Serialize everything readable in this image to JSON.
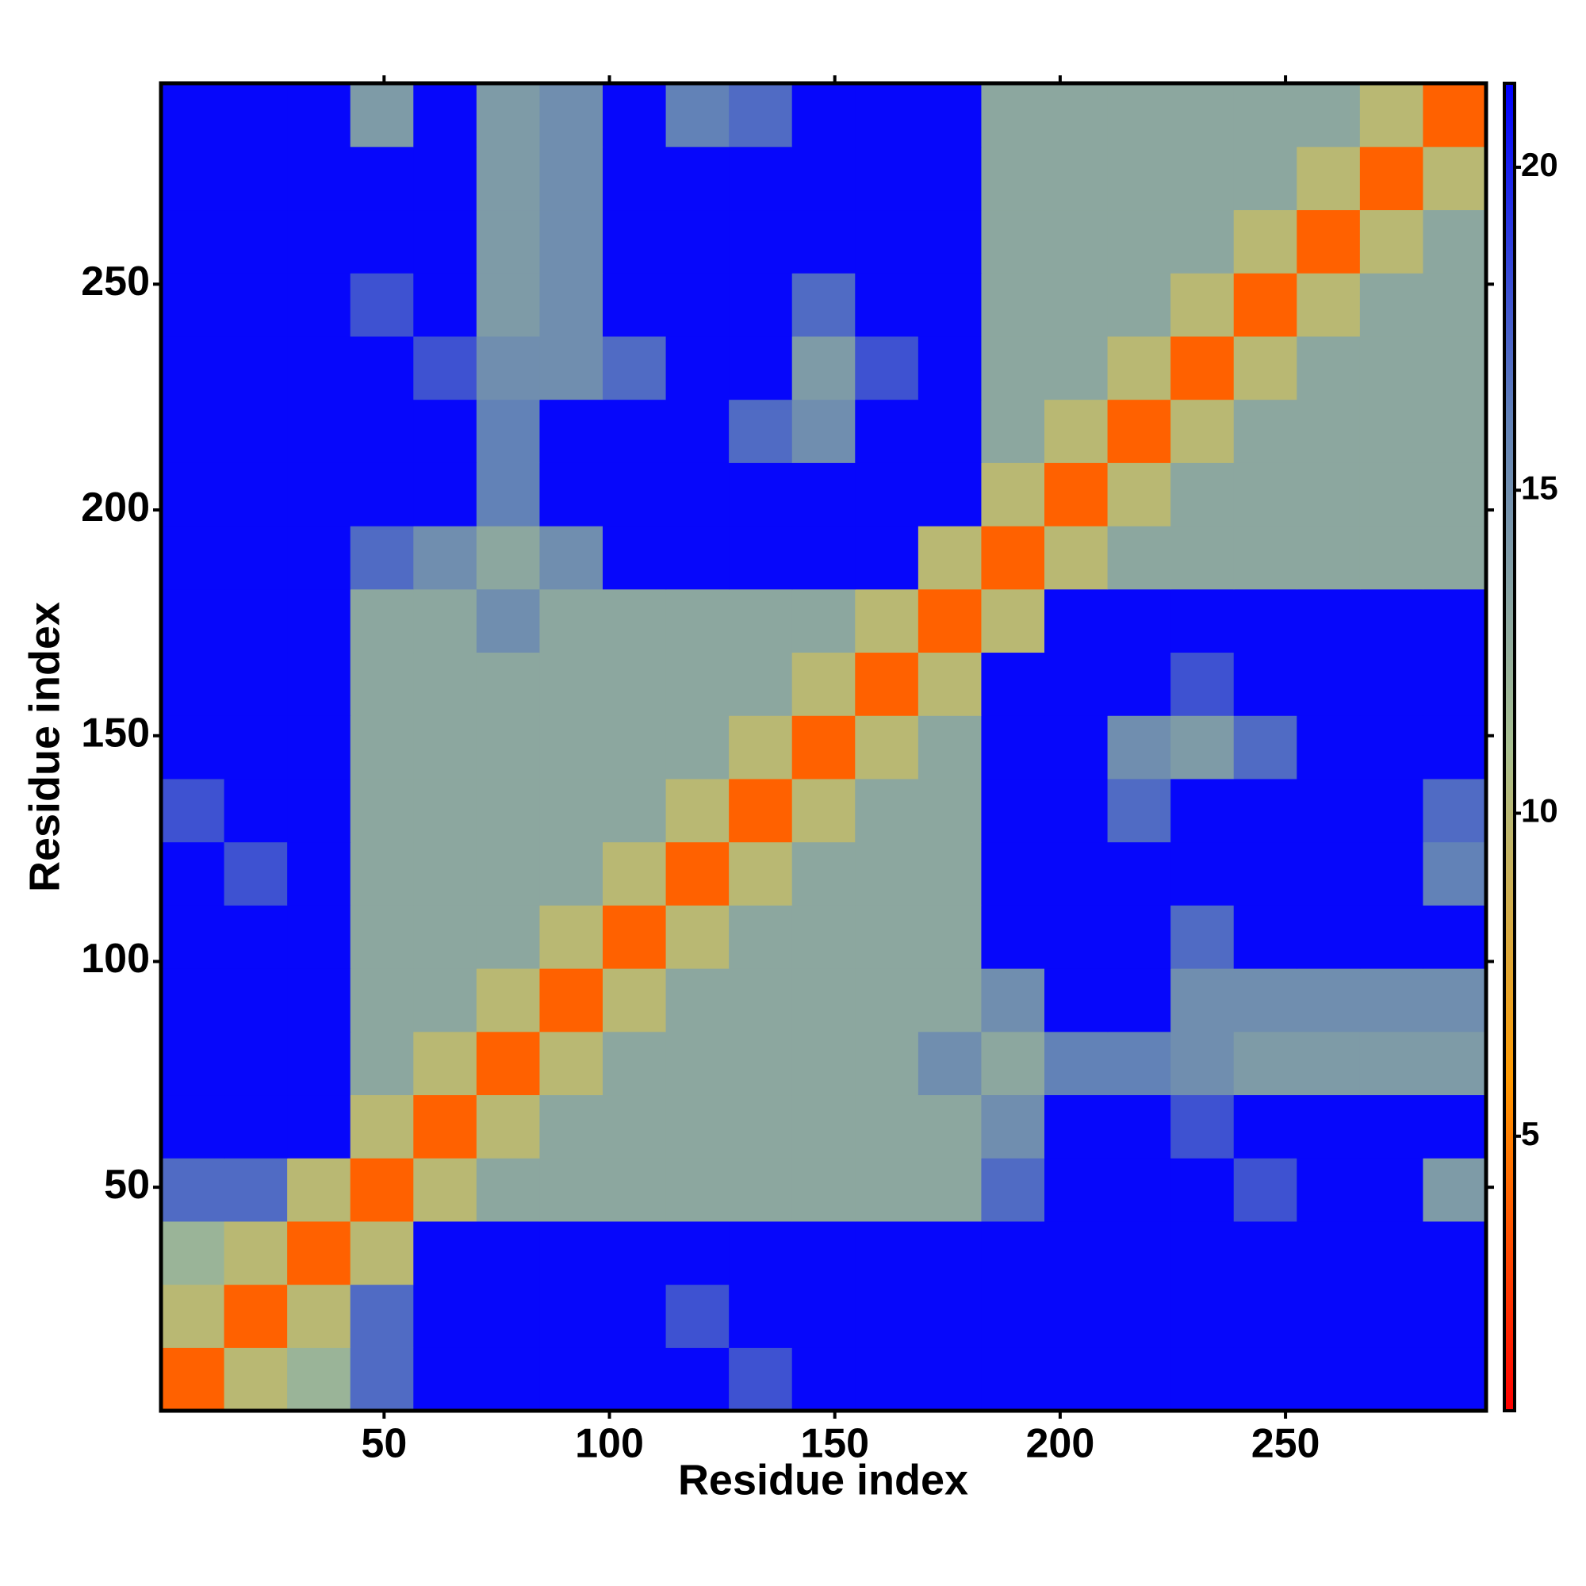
{
  "chart_data": {
    "type": "heatmap",
    "xlabel": "Residue index",
    "ylabel": "Residue index",
    "xbins": [
      0.5,
      14.5,
      28.5,
      42.5,
      56.5,
      70.5,
      84.5,
      98.5,
      112.5,
      126.5,
      140.5,
      154.5,
      168.5,
      182.5,
      196.5,
      210.5,
      224.5,
      238.5,
      252.5,
      266.5,
      280.5,
      294.5
    ],
    "ybins": [
      0.5,
      14.5,
      28.5,
      42.5,
      56.5,
      70.5,
      84.5,
      98.5,
      112.5,
      126.5,
      140.5,
      154.5,
      168.5,
      182.5,
      196.5,
      210.5,
      224.5,
      238.5,
      252.5,
      266.5,
      280.5,
      294.5
    ],
    "z": [
      [
        4,
        10,
        12,
        17,
        21,
        21,
        21,
        21,
        21,
        18,
        21,
        21,
        21,
        21,
        21,
        21,
        21,
        21,
        21,
        21,
        21
      ],
      [
        10,
        4,
        10,
        17,
        21,
        21,
        21,
        21,
        18,
        21,
        21,
        21,
        21,
        21,
        21,
        21,
        21,
        21,
        21,
        21,
        21
      ],
      [
        12,
        10,
        4,
        10,
        21,
        21,
        21,
        21,
        21,
        21,
        21,
        21,
        21,
        21,
        21,
        21,
        21,
        21,
        21,
        21,
        21
      ],
      [
        17,
        17,
        10,
        4,
        10,
        13,
        13,
        13,
        13,
        13,
        13,
        13,
        13,
        17,
        21,
        21,
        21,
        18,
        21,
        21,
        14
      ],
      [
        21,
        21,
        21,
        10,
        4,
        10,
        13,
        13,
        13,
        13,
        13,
        13,
        13,
        15,
        21,
        21,
        18,
        21,
        21,
        21,
        21
      ],
      [
        21,
        21,
        21,
        13,
        10,
        4,
        10,
        13,
        13,
        13,
        13,
        13,
        15,
        13,
        16,
        16,
        15,
        14,
        14,
        14,
        14
      ],
      [
        21,
        21,
        21,
        13,
        13,
        10,
        4,
        10,
        13,
        13,
        13,
        13,
        13,
        15,
        21,
        21,
        15,
        15,
        15,
        15,
        15
      ],
      [
        21,
        21,
        21,
        13,
        13,
        13,
        10,
        4,
        10,
        13,
        13,
        13,
        13,
        21,
        21,
        21,
        17,
        21,
        21,
        21,
        21
      ],
      [
        21,
        18,
        21,
        13,
        13,
        13,
        13,
        10,
        4,
        10,
        13,
        13,
        13,
        21,
        21,
        21,
        21,
        21,
        21,
        21,
        16
      ],
      [
        18,
        21,
        21,
        13,
        13,
        13,
        13,
        13,
        10,
        4,
        10,
        13,
        13,
        21,
        21,
        17,
        21,
        21,
        21,
        21,
        17
      ],
      [
        21,
        21,
        21,
        13,
        13,
        13,
        13,
        13,
        13,
        10,
        4,
        10,
        13,
        21,
        21,
        15,
        14,
        17,
        21,
        21,
        21
      ],
      [
        21,
        21,
        21,
        13,
        13,
        13,
        13,
        13,
        13,
        13,
        10,
        4,
        10,
        21,
        21,
        21,
        18,
        21,
        21,
        21,
        21
      ],
      [
        21,
        21,
        21,
        13,
        13,
        15,
        13,
        13,
        13,
        13,
        13,
        10,
        4,
        10,
        21,
        21,
        21,
        21,
        21,
        21,
        21
      ],
      [
        21,
        21,
        21,
        17,
        15,
        13,
        15,
        21,
        21,
        21,
        21,
        21,
        10,
        4,
        10,
        13,
        13,
        13,
        13,
        13,
        13
      ],
      [
        21,
        21,
        21,
        21,
        21,
        16,
        21,
        21,
        21,
        21,
        21,
        21,
        21,
        10,
        4,
        10,
        13,
        13,
        13,
        13,
        13
      ],
      [
        21,
        21,
        21,
        21,
        21,
        16,
        21,
        21,
        21,
        17,
        15,
        21,
        21,
        13,
        10,
        4,
        10,
        13,
        13,
        13,
        13
      ],
      [
        21,
        21,
        21,
        21,
        18,
        15,
        15,
        17,
        21,
        21,
        14,
        18,
        21,
        13,
        13,
        10,
        4,
        10,
        13,
        13,
        13
      ],
      [
        21,
        21,
        21,
        18,
        21,
        14,
        15,
        21,
        21,
        21,
        17,
        21,
        21,
        13,
        13,
        13,
        10,
        4,
        10,
        13,
        13
      ],
      [
        21,
        21,
        21,
        21,
        21,
        14,
        15,
        21,
        21,
        21,
        21,
        21,
        21,
        13,
        13,
        13,
        13,
        10,
        4,
        10,
        13
      ],
      [
        21,
        21,
        21,
        21,
        21,
        14,
        15,
        21,
        21,
        21,
        21,
        21,
        21,
        13,
        13,
        13,
        13,
        13,
        10,
        4,
        10
      ],
      [
        21,
        21,
        21,
        14,
        21,
        14,
        15,
        21,
        16,
        17,
        21,
        21,
        21,
        13,
        13,
        13,
        13,
        13,
        13,
        10,
        4
      ]
    ],
    "xlim": [
      0.5,
      294.5
    ],
    "ylim": [
      0.5,
      294.5
    ],
    "xticks": [
      50,
      100,
      150,
      200,
      250
    ],
    "yticks": [
      50,
      100,
      150,
      200,
      250
    ],
    "clim": [
      0.75,
      21.3
    ],
    "cticks": [
      5,
      10,
      15,
      20
    ],
    "colormap": [
      "#ff0000",
      "#ff9900",
      "#a8c090",
      "#6080b8",
      "#0000ff"
    ]
  }
}
